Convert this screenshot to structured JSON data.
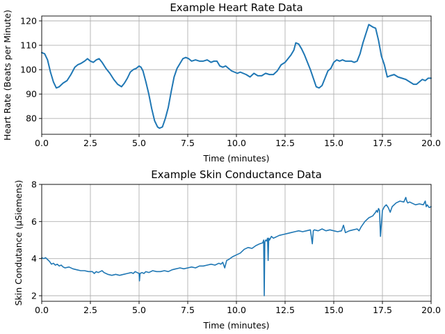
{
  "chart_data": [
    {
      "type": "line",
      "title": "Example Heart Rate Data",
      "xlabel": "Time (minutes)",
      "ylabel": "Heart Rate (Beats per Minute)",
      "xlim": [
        0,
        20
      ],
      "ylim": [
        73.5,
        122
      ],
      "xticks": [
        0,
        2.5,
        5,
        7.5,
        10,
        12.5,
        15,
        17.5,
        20
      ],
      "xtick_labels": [
        "0.0",
        "2.5",
        "5.0",
        "7.5",
        "10.0",
        "12.5",
        "15.0",
        "17.5",
        "20.0"
      ],
      "yticks": [
        80,
        90,
        100,
        110,
        120
      ],
      "ytick_labels": [
        "80",
        "90",
        "100",
        "110",
        "120"
      ],
      "grid": true,
      "color": "#1f77b4",
      "series": [
        {
          "x": [
            0,
            0.15,
            0.3,
            0.45,
            0.6,
            0.75,
            0.9,
            1.1,
            1.3,
            1.5,
            1.7,
            1.85,
            2.0,
            2.2,
            2.35,
            2.5,
            2.65,
            2.8,
            2.95,
            3.1,
            3.3,
            3.5,
            3.7,
            3.9,
            4.1,
            4.25,
            4.4,
            4.55,
            4.7,
            4.85,
            5.0,
            5.1,
            5.2,
            5.35,
            5.5,
            5.65,
            5.8,
            5.95,
            6.05,
            6.2,
            6.35,
            6.5,
            6.65,
            6.8,
            6.95,
            7.1,
            7.25,
            7.4,
            7.55,
            7.7,
            7.9,
            8.1,
            8.3,
            8.5,
            8.7,
            8.85,
            9.0,
            9.15,
            9.3,
            9.45,
            9.6,
            9.75,
            9.9,
            10.05,
            10.2,
            10.35,
            10.5,
            10.7,
            10.9,
            11.1,
            11.3,
            11.5,
            11.7,
            11.9,
            12.1,
            12.3,
            12.5,
            12.65,
            12.8,
            12.95,
            13.05,
            13.2,
            13.35,
            13.5,
            13.65,
            13.8,
            13.95,
            14.1,
            14.25,
            14.4,
            14.55,
            14.7,
            14.85,
            15.0,
            15.15,
            15.3,
            15.45,
            15.6,
            15.75,
            15.9,
            16.05,
            16.2,
            16.35,
            16.5,
            16.6,
            16.7,
            16.8,
            16.9,
            17.0,
            17.15,
            17.3,
            17.45,
            17.6,
            17.75,
            17.9,
            18.1,
            18.3,
            18.5,
            18.7,
            18.9,
            19.1,
            19.25,
            19.4,
            19.55,
            19.7,
            19.85,
            20.0
          ],
          "y": [
            107,
            106.5,
            104,
            99,
            95,
            92.5,
            93,
            94.5,
            95.5,
            98,
            101,
            102,
            102.5,
            103.5,
            104.5,
            103.5,
            103,
            104,
            104.5,
            103,
            100.5,
            98.5,
            96,
            94,
            93,
            94.5,
            96.5,
            99,
            100,
            100.5,
            101.5,
            101,
            99.5,
            95,
            90,
            84,
            79,
            76.5,
            76,
            76.5,
            80,
            84.5,
            91,
            97,
            100.5,
            102.5,
            104.5,
            105,
            104.5,
            103.5,
            104,
            103.5,
            103.5,
            104,
            103,
            103.5,
            103.5,
            101.5,
            101,
            101.5,
            100.5,
            99.5,
            99,
            98.5,
            99,
            98.5,
            98,
            97,
            98.5,
            97.5,
            97.5,
            98.5,
            98,
            98,
            99.5,
            102,
            103,
            104.5,
            106,
            108,
            111,
            110.5,
            108.5,
            106,
            103,
            100,
            96.5,
            93,
            92.5,
            93.5,
            96.5,
            99.5,
            100.5,
            103,
            104,
            103.5,
            104,
            103.5,
            103.5,
            103.5,
            103,
            103.5,
            106.5,
            111,
            113.5,
            116,
            118.5,
            118,
            117.5,
            117,
            112,
            105.5,
            102,
            97,
            97.5,
            98,
            97,
            96.5,
            96,
            95,
            94,
            94,
            95,
            96,
            95.5,
            96.5,
            96.5
          ]
        }
      ]
    },
    {
      "type": "line",
      "title": "Example Skin Conductance Data",
      "xlabel": "Time (minutes)",
      "ylabel": "Skin Condutance (µSiemens)",
      "xlim": [
        0,
        20
      ],
      "ylim": [
        1.7,
        8
      ],
      "xticks": [
        0,
        2.5,
        5,
        7.5,
        10,
        12.5,
        15,
        17.5,
        20
      ],
      "xtick_labels": [
        "0.0",
        "2.5",
        "5.0",
        "7.5",
        "10.0",
        "12.5",
        "15.0",
        "17.5",
        "20.0"
      ],
      "yticks": [
        2,
        4,
        6,
        8
      ],
      "ytick_labels": [
        "2",
        "4",
        "6",
        "8"
      ],
      "grid": true,
      "color": "#1f77b4",
      "series": [
        {
          "x": [
            0,
            0.1,
            0.2,
            0.3,
            0.4,
            0.5,
            0.6,
            0.7,
            0.8,
            0.9,
            1.0,
            1.1,
            1.2,
            1.4,
            1.6,
            1.8,
            2.0,
            2.2,
            2.4,
            2.6,
            2.7,
            2.8,
            2.9,
            3.0,
            3.1,
            3.2,
            3.3,
            3.4,
            3.6,
            3.8,
            4.0,
            4.2,
            4.4,
            4.6,
            4.7,
            4.8,
            4.9,
            5.0,
            5.02,
            5.05,
            5.15,
            5.25,
            5.35,
            5.5,
            5.7,
            5.9,
            6.1,
            6.3,
            6.5,
            6.7,
            6.9,
            7.1,
            7.3,
            7.5,
            7.7,
            7.9,
            8.1,
            8.3,
            8.5,
            8.7,
            8.9,
            9.1,
            9.2,
            9.3,
            9.4,
            9.5,
            9.6,
            9.8,
            10.0,
            10.2,
            10.4,
            10.6,
            10.8,
            11.0,
            11.2,
            11.35,
            11.4,
            11.43,
            11.46,
            11.5,
            11.55,
            11.6,
            11.63,
            11.66,
            11.7,
            11.8,
            11.9,
            12.0,
            12.1,
            12.2,
            12.4,
            12.6,
            12.8,
            13.0,
            13.2,
            13.4,
            13.6,
            13.8,
            13.9,
            13.95,
            14.0,
            14.2,
            14.4,
            14.6,
            14.8,
            15.0,
            15.2,
            15.4,
            15.5,
            15.6,
            15.8,
            16.0,
            16.2,
            16.3,
            16.4,
            16.5,
            16.6,
            16.8,
            17.0,
            17.15,
            17.2,
            17.25,
            17.3,
            17.35,
            17.4,
            17.5,
            17.6,
            17.7,
            17.8,
            17.9,
            18.0,
            18.2,
            18.4,
            18.6,
            18.7,
            18.75,
            18.8,
            18.9,
            19.0,
            19.2,
            19.4,
            19.6,
            19.7,
            19.75,
            19.8,
            19.9,
            20.0
          ],
          "y": [
            4.05,
            4.0,
            4.05,
            3.95,
            3.85,
            3.7,
            3.75,
            3.65,
            3.7,
            3.6,
            3.65,
            3.55,
            3.5,
            3.55,
            3.45,
            3.4,
            3.35,
            3.35,
            3.3,
            3.3,
            3.2,
            3.3,
            3.25,
            3.3,
            3.35,
            3.25,
            3.2,
            3.15,
            3.1,
            3.15,
            3.1,
            3.15,
            3.2,
            3.25,
            3.2,
            3.3,
            3.25,
            3.2,
            2.8,
            3.2,
            3.25,
            3.2,
            3.3,
            3.25,
            3.35,
            3.3,
            3.3,
            3.35,
            3.3,
            3.4,
            3.45,
            3.5,
            3.45,
            3.5,
            3.55,
            3.5,
            3.6,
            3.6,
            3.65,
            3.7,
            3.65,
            3.75,
            3.7,
            3.8,
            3.5,
            3.9,
            3.95,
            4.1,
            4.2,
            4.3,
            4.5,
            4.6,
            4.55,
            4.7,
            4.8,
            4.85,
            5.0,
            2.0,
            4.9,
            5.0,
            4.95,
            5.1,
            3.9,
            5.1,
            5.0,
            5.2,
            5.1,
            5.15,
            5.2,
            5.25,
            5.3,
            5.35,
            5.4,
            5.45,
            5.5,
            5.45,
            5.5,
            5.55,
            4.8,
            5.5,
            5.55,
            5.5,
            5.6,
            5.5,
            5.55,
            5.5,
            5.45,
            5.5,
            5.8,
            5.4,
            5.5,
            5.55,
            5.6,
            5.5,
            5.7,
            5.85,
            6.0,
            6.2,
            6.3,
            6.5,
            6.6,
            6.5,
            6.7,
            6.6,
            5.2,
            6.6,
            6.8,
            6.9,
            6.75,
            6.5,
            6.8,
            7.0,
            7.1,
            7.05,
            7.3,
            7.1,
            7.0,
            7.05,
            7.0,
            6.9,
            6.95,
            6.9,
            7.1,
            6.8,
            6.9,
            6.75,
            6.8
          ]
        }
      ]
    }
  ]
}
